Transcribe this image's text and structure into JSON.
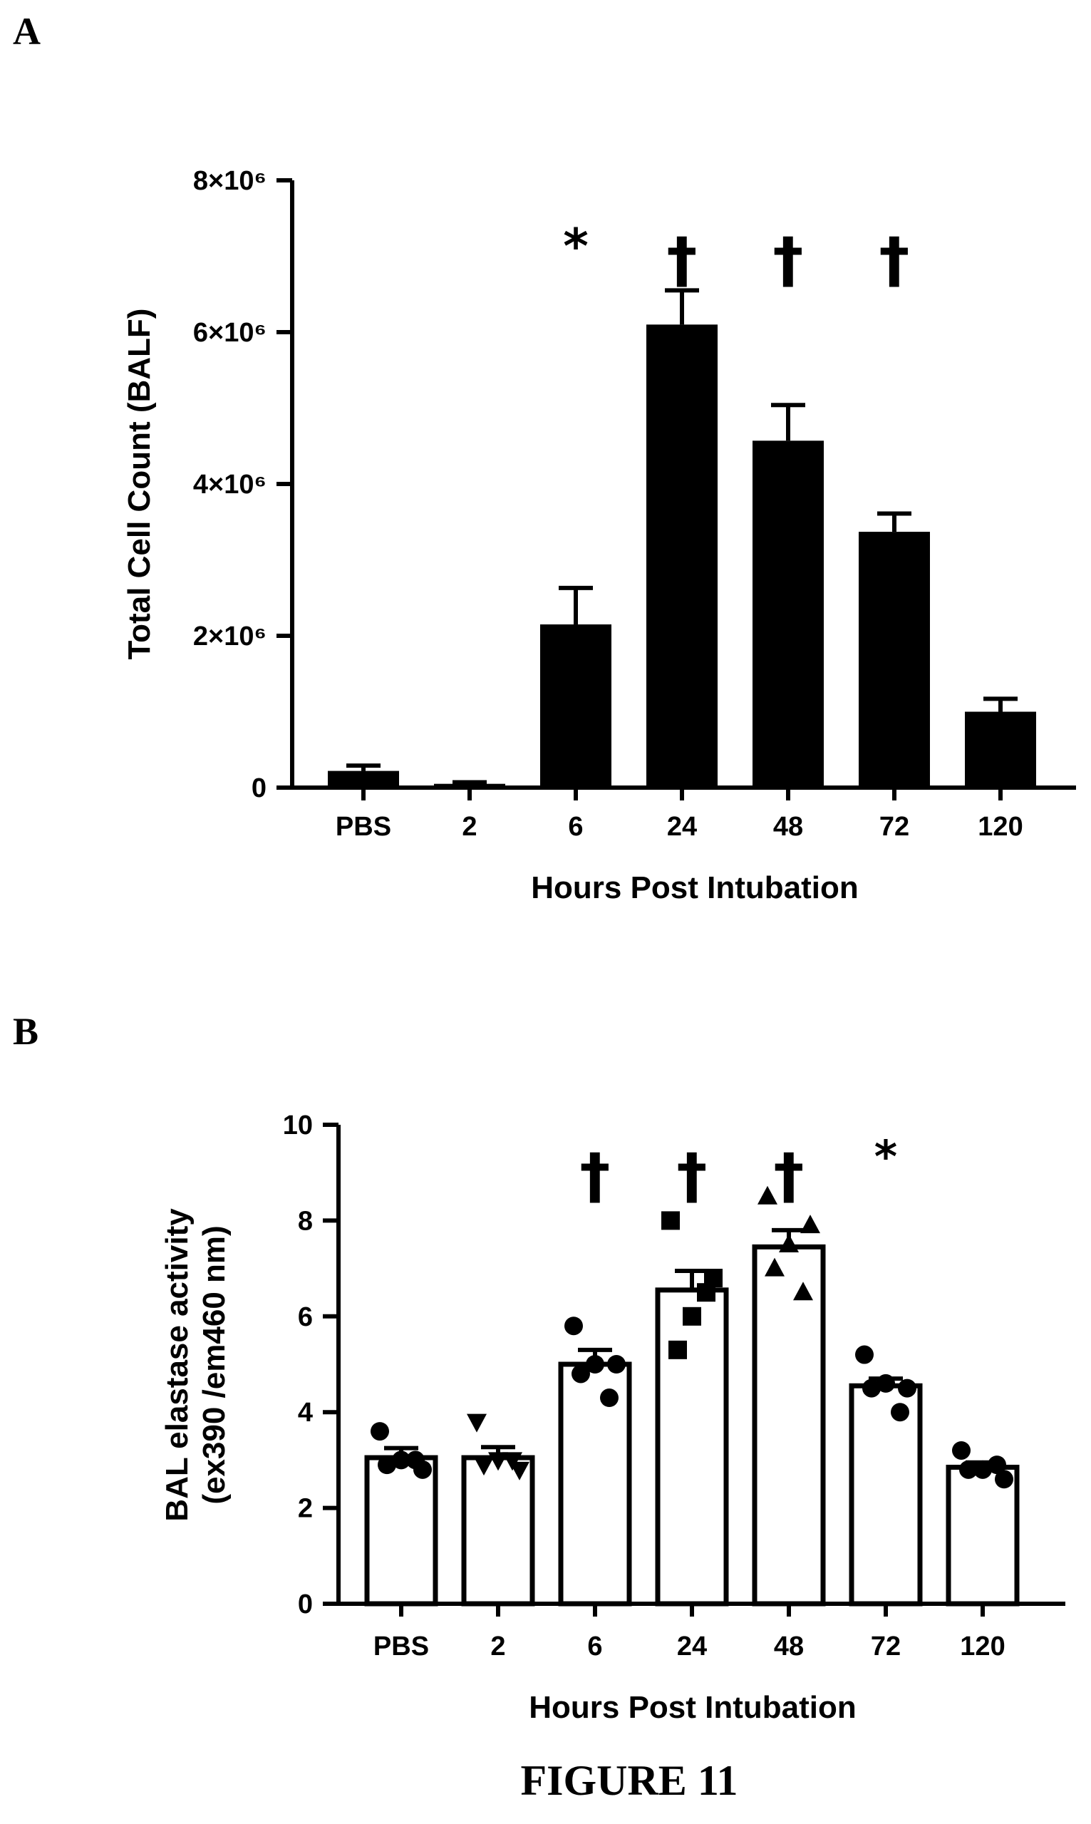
{
  "panels": {
    "a_label": "A",
    "b_label": "B"
  },
  "figure_caption": "FIGURE 11",
  "chart_data": [
    {
      "id": "A",
      "type": "bar",
      "categories": [
        "PBS",
        "2",
        "6",
        "24",
        "48",
        "72",
        "120"
      ],
      "values": [
        0.22,
        0.05,
        2.15,
        6.1,
        4.57,
        3.37,
        1.0
      ],
      "errors": [
        0.07,
        0.02,
        0.48,
        0.45,
        0.47,
        0.24,
        0.17
      ],
      "value_multiplier": 1000000,
      "significance": [
        "",
        "",
        "*",
        "†",
        "†",
        "†",
        ""
      ],
      "ylabel": "Total Cell Count (BALF)",
      "xlabel": "Hours Post Intubation",
      "ylim": [
        0,
        8
      ],
      "yticks": [
        0,
        2,
        4,
        6,
        8
      ],
      "ytick_labels": [
        "0",
        "2×10⁶",
        "4×10⁶",
        "6×10⁶",
        "8×10⁶"
      ],
      "bar_fill": "#000000",
      "grid": false
    },
    {
      "id": "B",
      "type": "bar",
      "categories": [
        "PBS",
        "2",
        "6",
        "24",
        "48",
        "72",
        "120"
      ],
      "values": [
        3.05,
        3.05,
        5.0,
        6.55,
        7.45,
        4.55,
        2.85
      ],
      "errors": [
        0.2,
        0.22,
        0.3,
        0.4,
        0.35,
        0.15,
        0.1
      ],
      "points": [
        [
          3.6,
          3.0,
          2.9,
          3.0,
          2.8
        ],
        [
          3.8,
          3.0,
          2.9,
          3.0,
          2.8
        ],
        [
          5.8,
          5.0,
          4.8,
          4.3,
          5.0
        ],
        [
          8.0,
          6.0,
          5.3,
          6.5,
          6.8
        ],
        [
          8.5,
          7.5,
          7.0,
          6.5,
          7.9
        ],
        [
          5.2,
          4.6,
          4.5,
          4.0,
          4.5
        ],
        [
          3.2,
          2.8,
          2.8,
          2.9,
          2.6
        ]
      ],
      "point_markers": [
        "circle",
        "triangle-down",
        "circle",
        "square",
        "triangle-up",
        "circle",
        "circle"
      ],
      "significance": [
        "",
        "",
        "†",
        "†",
        "†",
        "*",
        ""
      ],
      "ylabel_lines": [
        "BAL elastase activity",
        "(ex390 /em460 nm)"
      ],
      "xlabel": "Hours Post Intubation",
      "ylim": [
        0,
        10
      ],
      "yticks": [
        0,
        2,
        4,
        6,
        8,
        10
      ],
      "ytick_labels": [
        "0",
        "2",
        "4",
        "6",
        "8",
        "10"
      ],
      "bar_fill": "#ffffff",
      "bar_stroke": "#000000",
      "grid": false
    }
  ]
}
